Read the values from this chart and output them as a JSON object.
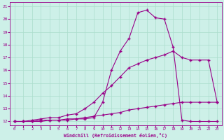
{
  "xlabel": "Windchill (Refroidissement éolien,°C)",
  "background_color": "#cdf0e8",
  "grid_color": "#aaddcc",
  "line_color": "#990088",
  "ylim": [
    11.7,
    21.3
  ],
  "xlim": [
    -0.5,
    23.5
  ],
  "yticks": [
    12,
    13,
    14,
    15,
    16,
    17,
    18,
    19,
    20,
    21
  ],
  "xticks": [
    0,
    1,
    2,
    3,
    4,
    5,
    6,
    7,
    8,
    9,
    10,
    11,
    12,
    13,
    14,
    15,
    16,
    17,
    18,
    19,
    20,
    21,
    22,
    23
  ],
  "line1_x": [
    0,
    1,
    2,
    3,
    4,
    5,
    6,
    7,
    8,
    9,
    10,
    11,
    12,
    13,
    14,
    15,
    16,
    17,
    18,
    19,
    20,
    21,
    22,
    23
  ],
  "line1_y": [
    12.0,
    12.0,
    12.0,
    12.1,
    12.1,
    12.1,
    12.1,
    12.2,
    12.2,
    12.3,
    13.5,
    16.0,
    17.5,
    18.5,
    20.5,
    20.7,
    20.1,
    20.0,
    17.8,
    12.1,
    12.0,
    12.0,
    12.0,
    12.0
  ],
  "line2_x": [
    0,
    1,
    2,
    3,
    4,
    5,
    6,
    7,
    8,
    9,
    10,
    11,
    12,
    13,
    14,
    15,
    16,
    17,
    18,
    19,
    20,
    21,
    22,
    23
  ],
  "line2_y": [
    12.0,
    12.0,
    12.1,
    12.2,
    12.3,
    12.3,
    12.5,
    12.6,
    13.0,
    13.5,
    14.2,
    14.8,
    15.5,
    16.2,
    16.5,
    16.8,
    17.0,
    17.2,
    17.5,
    17.0,
    16.8,
    16.8,
    16.8,
    13.5
  ],
  "line3_x": [
    0,
    1,
    2,
    3,
    4,
    5,
    6,
    7,
    8,
    9,
    10,
    11,
    12,
    13,
    14,
    15,
    16,
    17,
    18,
    19,
    20,
    21,
    22,
    23
  ],
  "line3_y": [
    12.0,
    12.0,
    12.0,
    12.0,
    12.1,
    12.1,
    12.2,
    12.2,
    12.3,
    12.4,
    12.5,
    12.6,
    12.7,
    12.9,
    13.0,
    13.1,
    13.2,
    13.3,
    13.4,
    13.5,
    13.5,
    13.5,
    13.5,
    13.5
  ]
}
